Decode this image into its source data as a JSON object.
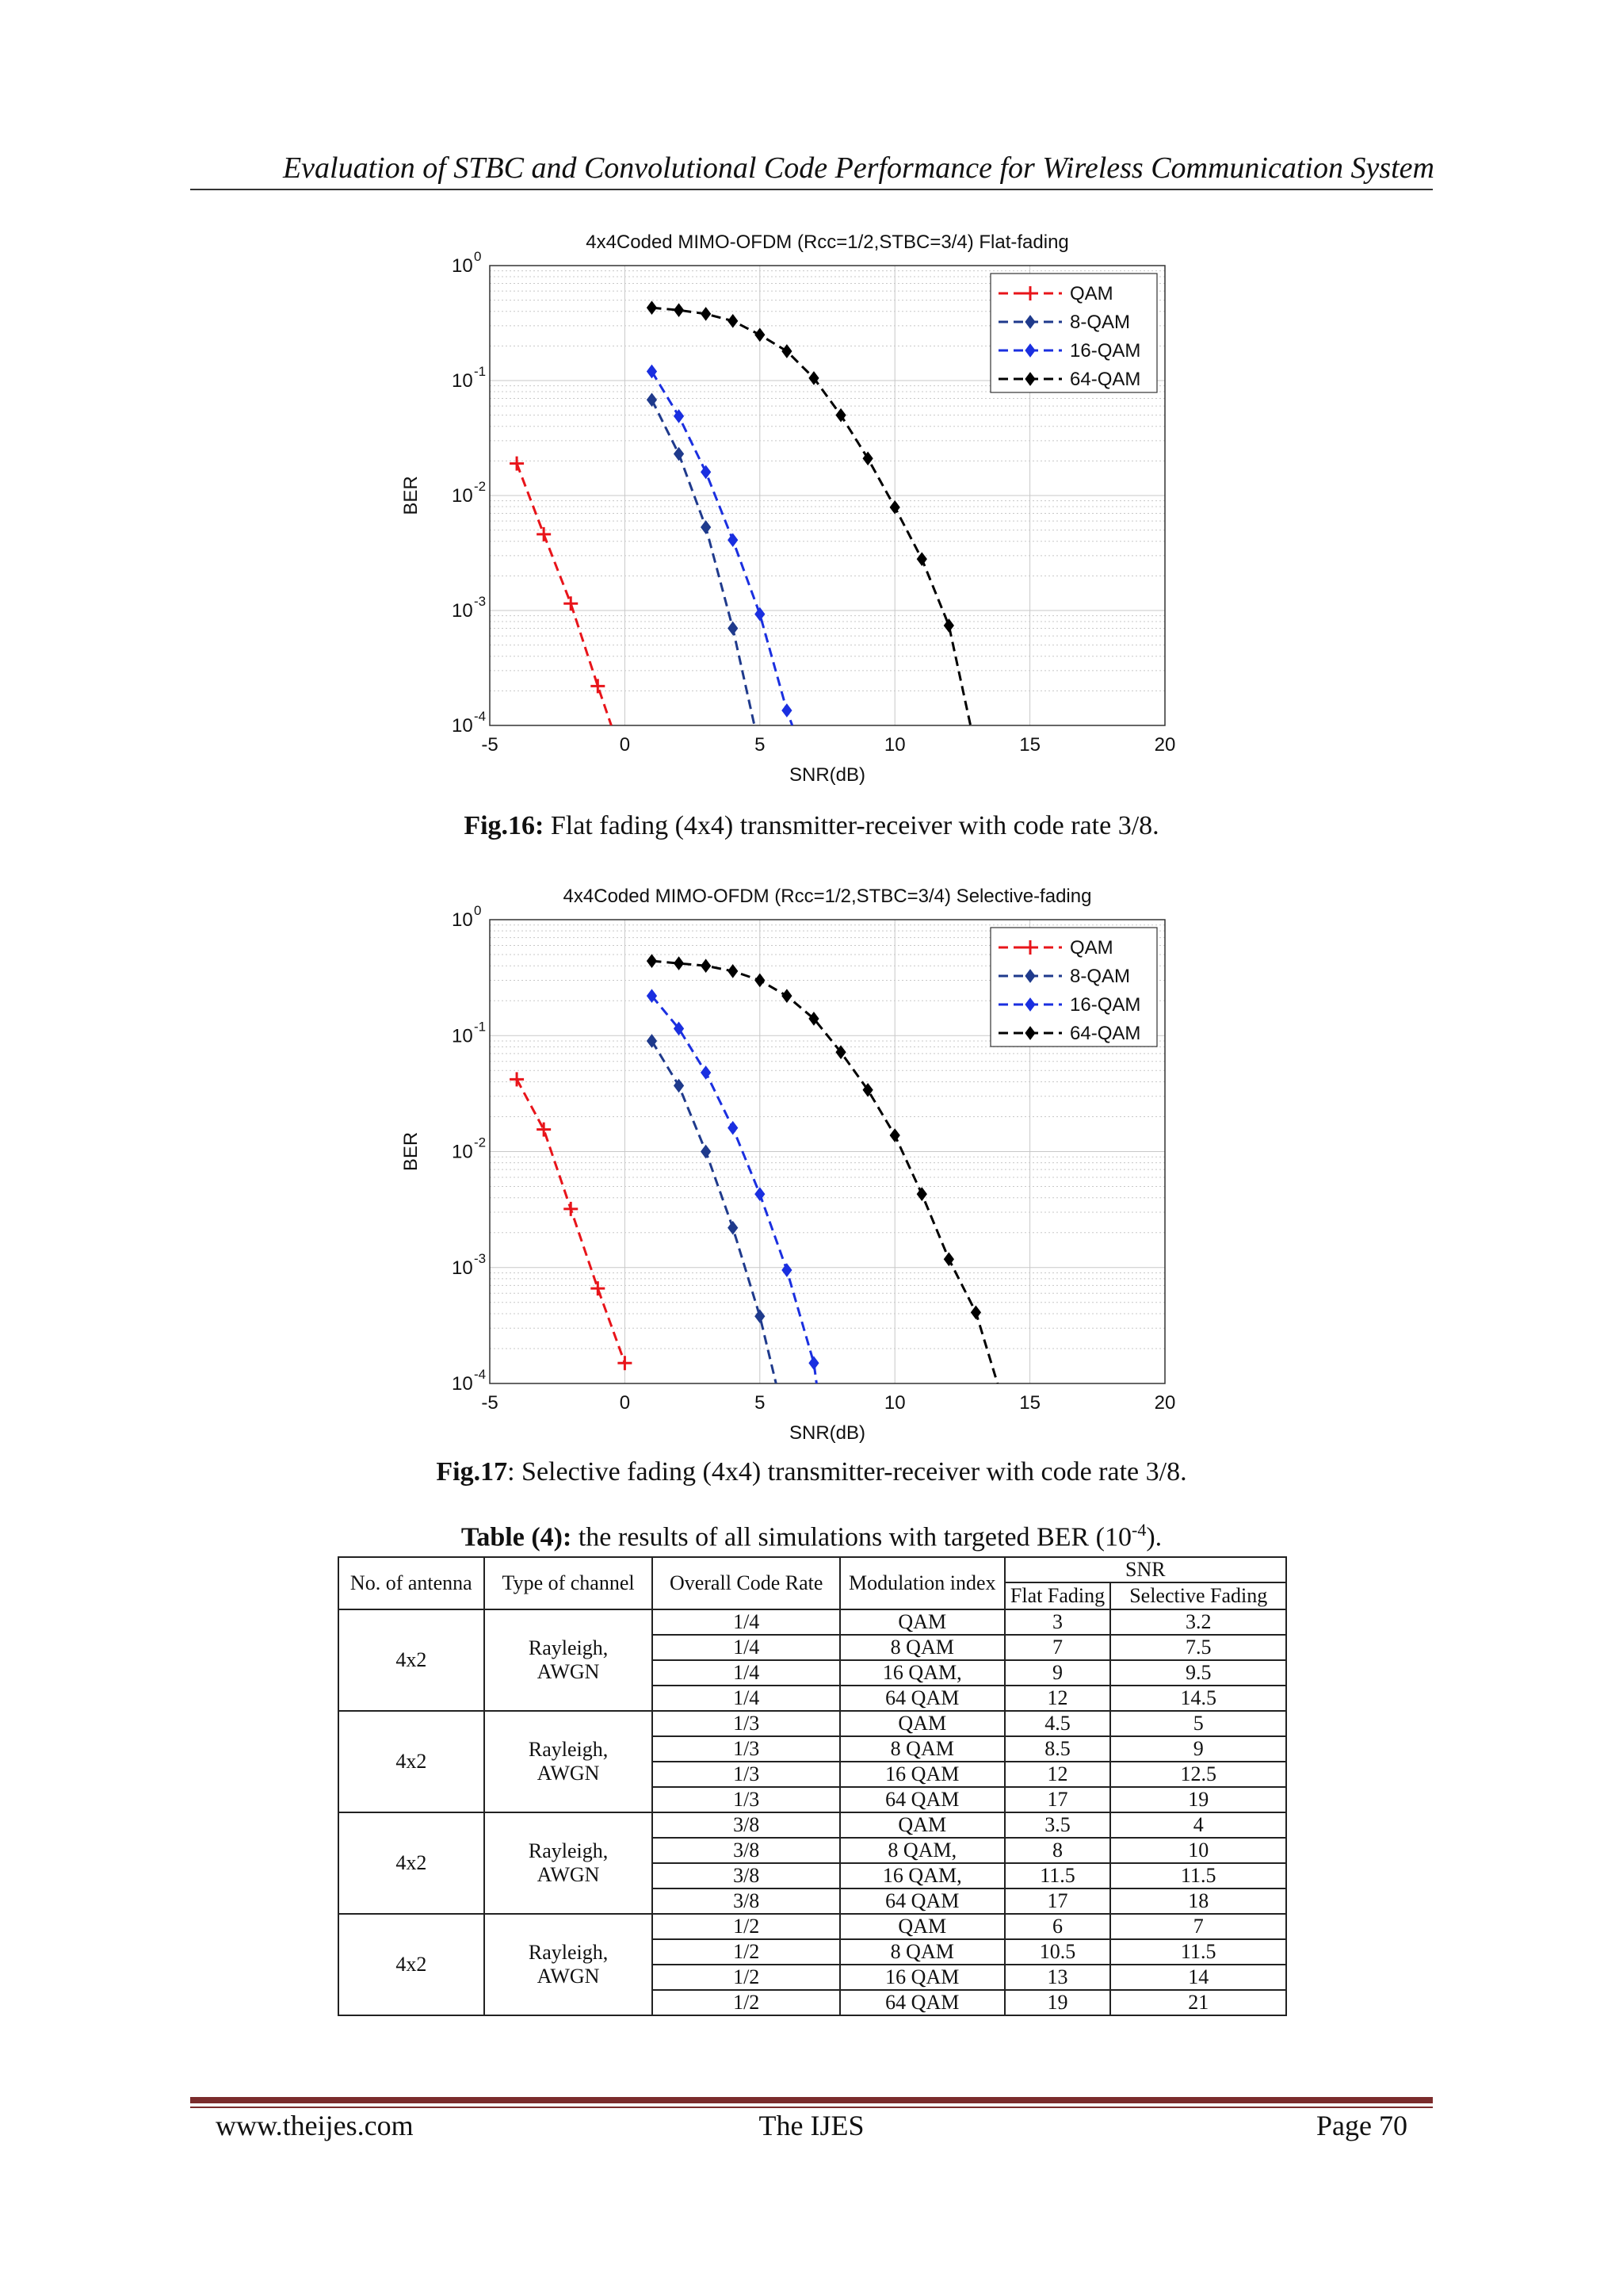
{
  "header": {
    "title": "Evaluation of STBC and Convolutional Code Performance for Wireless Communication System"
  },
  "figures": [
    {
      "caption_label": "Fig.16:",
      "caption_text": " Flat fading (4x4) transmitter-receiver with code rate 3/8."
    },
    {
      "caption_label": "Fig.17",
      "caption_text": ": Selective fading (4x4) transmitter-receiver with code rate 3/8."
    }
  ],
  "chart_data": [
    {
      "type": "line",
      "title": "4x4Coded MIMO-OFDM (Rcc=1/2,STBC=3/4) Flat-fading",
      "xlabel": "SNR(dB)",
      "ylabel": "BER",
      "xlim": [
        -5,
        20
      ],
      "ylim": [
        0.0001,
        1
      ],
      "yscale": "log",
      "xticks": [
        "-5",
        "0",
        "5",
        "10",
        "15",
        "20"
      ],
      "yticks": [
        {
          "base": "10",
          "exp": "0"
        },
        {
          "base": "10",
          "exp": "-1"
        },
        {
          "base": "10",
          "exp": "-2"
        },
        {
          "base": "10",
          "exp": "-3"
        },
        {
          "base": "10",
          "exp": "-4"
        }
      ],
      "grid": true,
      "legend_position": "top-right",
      "series": [
        {
          "name": "QAM",
          "color": "#e8141a",
          "marker": "plus",
          "x": [
            -4,
            -3,
            -2,
            -1,
            -0.5
          ],
          "y": [
            0.019,
            0.0046,
            0.00115,
            0.00022,
            0.0001
          ]
        },
        {
          "name": "8-QAM",
          "color": "#1f3a8c",
          "marker": "diamond",
          "x": [
            1,
            2,
            3,
            4,
            4.8
          ],
          "y": [
            0.068,
            0.023,
            0.0053,
            0.0007,
            0.0001
          ]
        },
        {
          "name": "16-QAM",
          "color": "#1a2fe0",
          "marker": "diamond",
          "x": [
            1,
            2,
            3,
            4,
            5,
            6,
            6.2
          ],
          "y": [
            0.12,
            0.049,
            0.016,
            0.0041,
            0.00093,
            0.000135,
            0.0001
          ]
        },
        {
          "name": "64-QAM",
          "color": "#000000",
          "marker": "diamond",
          "x": [
            1,
            2,
            3,
            4,
            5,
            6,
            7,
            8,
            9,
            10,
            11,
            12,
            12.8
          ],
          "y": [
            0.43,
            0.41,
            0.38,
            0.33,
            0.25,
            0.18,
            0.105,
            0.05,
            0.021,
            0.0079,
            0.0028,
            0.00074,
            0.0001
          ]
        }
      ]
    },
    {
      "type": "line",
      "title": "4x4Coded MIMO-OFDM (Rcc=1/2,STBC=3/4) Selective-fading",
      "xlabel": "SNR(dB)",
      "ylabel": "BER",
      "xlim": [
        -5,
        20
      ],
      "ylim": [
        0.0001,
        1
      ],
      "yscale": "log",
      "xticks": [
        "-5",
        "0",
        "5",
        "10",
        "15",
        "20"
      ],
      "yticks": [
        {
          "base": "10",
          "exp": "0"
        },
        {
          "base": "10",
          "exp": "-1"
        },
        {
          "base": "10",
          "exp": "-2"
        },
        {
          "base": "10",
          "exp": "-3"
        },
        {
          "base": "10",
          "exp": "-4"
        }
      ],
      "grid": true,
      "legend_position": "top-right",
      "series": [
        {
          "name": "QAM",
          "color": "#e8141a",
          "marker": "plus",
          "x": [
            -4,
            -3,
            -2,
            -1,
            0
          ],
          "y": [
            0.042,
            0.0155,
            0.0032,
            0.00066,
            0.00015
          ]
        },
        {
          "name": "8-QAM",
          "color": "#1f3a8c",
          "marker": "diamond",
          "x": [
            1,
            2,
            3,
            4,
            5,
            5.6
          ],
          "y": [
            0.09,
            0.037,
            0.01,
            0.0022,
            0.00038,
            0.0001
          ]
        },
        {
          "name": "16-QAM",
          "color": "#1a2fe0",
          "marker": "diamond",
          "x": [
            1,
            2,
            3,
            4,
            5,
            6,
            7,
            7.1
          ],
          "y": [
            0.22,
            0.115,
            0.048,
            0.016,
            0.0043,
            0.00095,
            0.00015,
            0.0001
          ]
        },
        {
          "name": "64-QAM",
          "color": "#000000",
          "marker": "diamond",
          "x": [
            1,
            2,
            3,
            4,
            5,
            6,
            7,
            8,
            9,
            10,
            11,
            12,
            13,
            13.8
          ],
          "y": [
            0.44,
            0.42,
            0.4,
            0.36,
            0.3,
            0.22,
            0.14,
            0.072,
            0.034,
            0.0138,
            0.0043,
            0.00118,
            0.00041,
            0.0001
          ]
        }
      ]
    }
  ],
  "table": {
    "caption_label": "Table (4):",
    "caption_text": " the results of all simulations with targeted BER (10",
    "caption_exp": "-4",
    "caption_end": ").",
    "headers": {
      "antenna": "No. of antenna",
      "channel": "Type of channel",
      "rate": "Overall Code Rate",
      "modulation": "Modulation index",
      "snr": "SNR",
      "flat": "Flat Fading",
      "selective": "Selective Fading"
    },
    "groups": [
      {
        "antenna": "4x2",
        "channel": "Rayleigh, AWGN",
        "rows": [
          {
            "rate": "1/4",
            "mod": "QAM",
            "flat": "3",
            "sel": "3.2"
          },
          {
            "rate": "1/4",
            "mod": "8 QAM",
            "flat": "7",
            "sel": "7.5"
          },
          {
            "rate": "1/4",
            "mod": "16 QAM,",
            "flat": "9",
            "sel": "9.5"
          },
          {
            "rate": "1/4",
            "mod": "64 QAM",
            "flat": "12",
            "sel": "14.5"
          }
        ]
      },
      {
        "antenna": "4x2",
        "channel": "Rayleigh, AWGN",
        "rows": [
          {
            "rate": "1/3",
            "mod": "QAM",
            "flat": "4.5",
            "sel": "5"
          },
          {
            "rate": "1/3",
            "mod": "8 QAM",
            "flat": "8.5",
            "sel": "9"
          },
          {
            "rate": "1/3",
            "mod": "16 QAM",
            "flat": "12",
            "sel": "12.5"
          },
          {
            "rate": "1/3",
            "mod": "64 QAM",
            "flat": "17",
            "sel": "19"
          }
        ]
      },
      {
        "antenna": "4x2",
        "channel": "Rayleigh, AWGN",
        "rows": [
          {
            "rate": "3/8",
            "mod": "QAM",
            "flat": "3.5",
            "sel": "4"
          },
          {
            "rate": "3/8",
            "mod": "8 QAM,",
            "flat": "8",
            "sel": "10"
          },
          {
            "rate": "3/8",
            "mod": "16 QAM,",
            "flat": "11.5",
            "sel": "11.5"
          },
          {
            "rate": "3/8",
            "mod": "64 QAM",
            "flat": "17",
            "sel": "18"
          }
        ]
      },
      {
        "antenna": "4x2",
        "channel": "Rayleigh, AWGN",
        "rows": [
          {
            "rate": "1/2",
            "mod": "QAM",
            "flat": "6",
            "sel": "7"
          },
          {
            "rate": "1/2",
            "mod": "8 QAM",
            "flat": "10.5",
            "sel": "11.5"
          },
          {
            "rate": "1/2",
            "mod": "16 QAM",
            "flat": "13",
            "sel": "14"
          },
          {
            "rate": "1/2",
            "mod": "64 QAM",
            "flat": "19",
            "sel": "21"
          }
        ]
      }
    ]
  },
  "footer": {
    "left": "www.theijes.com",
    "center": "The IJES",
    "right": "Page 70"
  }
}
